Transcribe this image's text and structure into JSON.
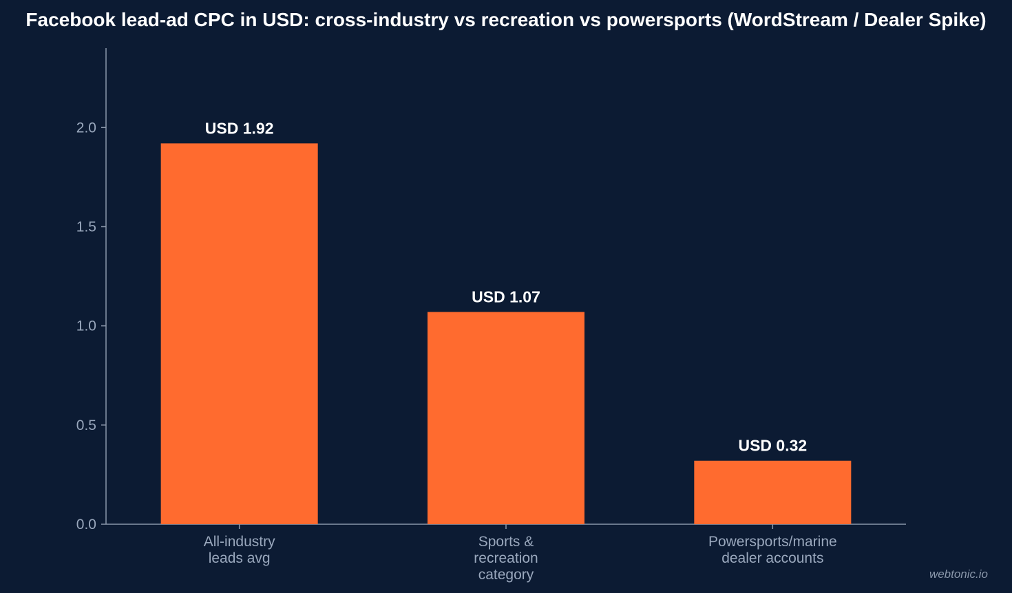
{
  "colors": {
    "background": "#0c1b33",
    "bar": "#ff6b2f",
    "axis": "#8a97aa",
    "text": "#ffffff",
    "muted_text": "#9aa8bd"
  },
  "watermark": "webtonic.io",
  "chart_data": {
    "type": "bar",
    "title": "Facebook lead-ad CPC in USD: cross-industry vs recreation vs powersports (WordStream / Dealer Spike)",
    "xlabel": "",
    "ylabel": "",
    "categories": [
      [
        "All-industry",
        "leads avg"
      ],
      [
        "Sports &",
        "recreation",
        "category"
      ],
      [
        "Powersports/marine",
        "dealer accounts"
      ]
    ],
    "values": [
      1.92,
      1.07,
      0.32
    ],
    "data_labels": [
      "USD 1.92",
      "USD 1.07",
      "USD 0.32"
    ],
    "ylim": [
      0,
      2.4
    ],
    "yticks": [
      0.0,
      0.5,
      1.0,
      1.5,
      2.0
    ],
    "ytick_labels": [
      "0.0",
      "0.5",
      "1.0",
      "1.5",
      "2.0"
    ],
    "grid": false,
    "legend": "none"
  }
}
